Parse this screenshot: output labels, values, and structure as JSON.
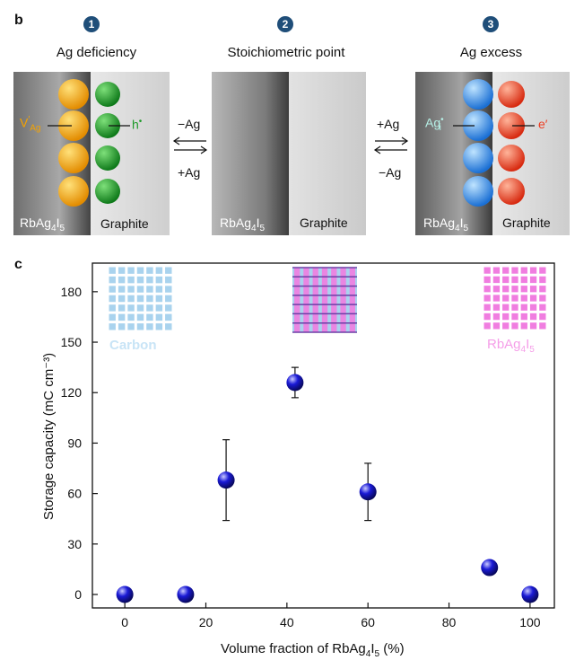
{
  "panel_b": {
    "letter": "b",
    "steps": [
      {
        "number": "1",
        "title": "Ag deficiency"
      },
      {
        "number": "2",
        "title": "Stoichiometric point"
      },
      {
        "number": "3",
        "title": "Ag excess"
      }
    ],
    "left_arrows": {
      "top": "−Ag",
      "bottom": "+Ag"
    },
    "right_arrows": {
      "top": "+Ag",
      "bottom": "−Ag"
    },
    "defect1": {
      "vacancy_main": "V",
      "vacancy_sup": "′",
      "vacancy_sub": "Ag",
      "hole": "h",
      "hole_sup": "•"
    },
    "defect3": {
      "interstitial_main": "Ag",
      "interstitial_sup": "•",
      "interstitial_sub": "i",
      "electron": "e′"
    },
    "material": {
      "main": "RbAg",
      "sub1": "4",
      "mid": "I",
      "sub2": "5"
    },
    "graphite": "Graphite",
    "colors": {
      "orange": "#f5a300",
      "green": "#1c9a28",
      "blue": "#2e8ff0",
      "red": "#ee3a1e"
    }
  },
  "panel_c": {
    "letter": "c",
    "inset_labels": {
      "carbon": "Carbon",
      "material": {
        "main": "RbAg",
        "sub1": "4",
        "mid": "I",
        "sub2": "5"
      }
    },
    "colors": {
      "carbon_grid": "#a9d3ee",
      "material_grid": "#f07de0",
      "marker": "#1a1ad6"
    }
  },
  "chart_data": {
    "type": "scatter",
    "xlabel": {
      "prefix": "Volume fraction of RbAg",
      "sub1": "4",
      "mid": "I",
      "sub2": "5",
      "suffix": " (%)"
    },
    "ylabel": "Storage capacity (mC cm⁻³)",
    "xlim": [
      -8,
      106
    ],
    "ylim": [
      -8,
      197
    ],
    "xticks": [
      0,
      20,
      40,
      60,
      80,
      100
    ],
    "yticks": [
      0,
      30,
      60,
      90,
      120,
      150,
      180
    ],
    "points": [
      {
        "x": 0,
        "y": 0
      },
      {
        "x": 15,
        "y": 0
      },
      {
        "x": 25,
        "y": 68,
        "err_low": 44,
        "err_high": 92
      },
      {
        "x": 42,
        "y": 126,
        "err_low": 117,
        "err_high": 135
      },
      {
        "x": 60,
        "y": 61,
        "err_low": 44,
        "err_high": 78
      },
      {
        "x": 90,
        "y": 16
      },
      {
        "x": 100,
        "y": 0
      }
    ],
    "grid": false
  }
}
